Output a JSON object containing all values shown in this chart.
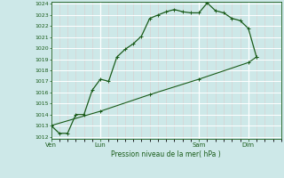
{
  "title": "Pression niveau de la mer( hPa )",
  "bg_color": "#cde8e8",
  "grid_color": "#ffffff",
  "grid_minor_color": "#ddeedd",
  "line_color": "#1a5c1a",
  "y_min": 1012,
  "y_max": 1024,
  "y_ticks": [
    1012,
    1013,
    1014,
    1015,
    1016,
    1017,
    1018,
    1019,
    1020,
    1021,
    1022,
    1023,
    1024
  ],
  "x_ticks_labels": [
    "Ven",
    "Lun",
    "Sam",
    "Dim"
  ],
  "x_ticks_positions": [
    0,
    6,
    18,
    24
  ],
  "x_max": 28,
  "line1_x": [
    0,
    1,
    2,
    3,
    4,
    5,
    6,
    7,
    8,
    9,
    10,
    11,
    12,
    13,
    14,
    15,
    16,
    17,
    18,
    19,
    20,
    21,
    22,
    23,
    24,
    25
  ],
  "line1_y": [
    1013.0,
    1012.3,
    1012.3,
    1014.0,
    1014.0,
    1016.2,
    1017.2,
    1017.0,
    1019.2,
    1019.9,
    1020.4,
    1021.1,
    1022.7,
    1023.0,
    1023.3,
    1023.5,
    1023.3,
    1023.2,
    1023.2,
    1024.1,
    1023.4,
    1023.2,
    1022.7,
    1022.5,
    1021.8,
    1019.2
  ],
  "line2_x": [
    0,
    6,
    12,
    18,
    24,
    25
  ],
  "line2_y": [
    1013.0,
    1014.3,
    1015.8,
    1017.2,
    1018.7,
    1019.2
  ],
  "vlines_x": [
    0,
    6,
    18,
    24
  ],
  "marker": "+"
}
